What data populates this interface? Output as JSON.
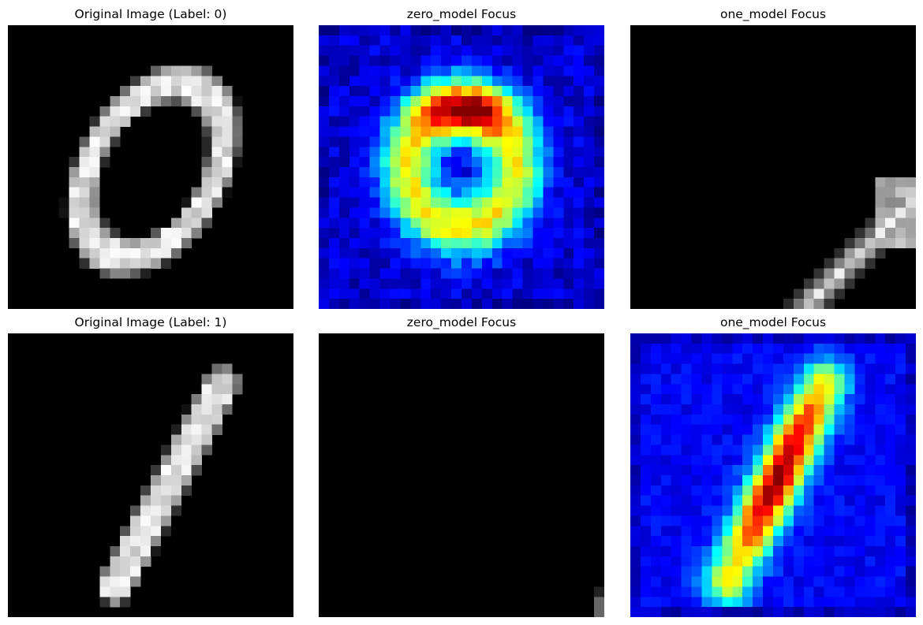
{
  "figure": {
    "panels": [
      {
        "title": "Original Image (Label: 0)",
        "kind": "grayscale-digit",
        "digit": "0"
      },
      {
        "title": "zero_model Focus",
        "kind": "jet-heatmap-overlay",
        "colormap": "jet"
      },
      {
        "title": "one_model Focus",
        "kind": "grayscale-partial"
      },
      {
        "title": "Original Image (Label: 1)",
        "kind": "grayscale-digit",
        "digit": "1"
      },
      {
        "title": "zero_model Focus",
        "kind": "mostly-black"
      },
      {
        "title": "one_model Focus",
        "kind": "jet-heatmap-overlay",
        "colormap": "jet"
      }
    ]
  }
}
